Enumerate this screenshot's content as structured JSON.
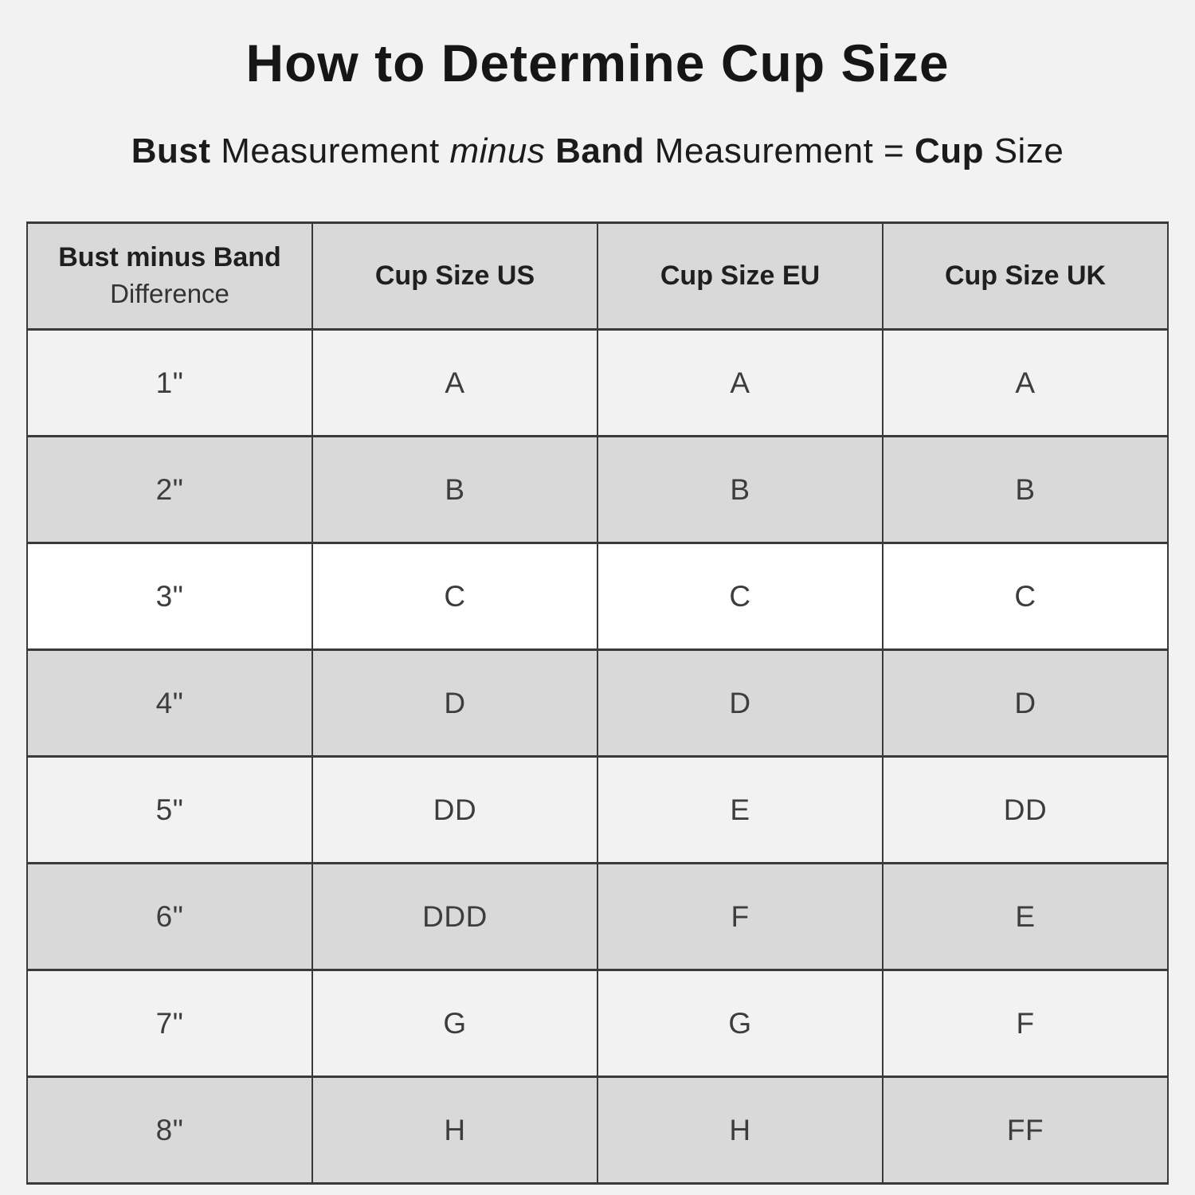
{
  "page": {
    "title": "How to Determine Cup Size",
    "subtitle_segments": [
      {
        "text": "Bust",
        "style": "bold"
      },
      {
        "text": " Measurement ",
        "style": "normal"
      },
      {
        "text": "minus",
        "style": "italic"
      },
      {
        "text": " ",
        "style": "normal"
      },
      {
        "text": "Band",
        "style": "bold"
      },
      {
        "text": " Measurement = ",
        "style": "normal"
      },
      {
        "text": "Cup",
        "style": "bold"
      },
      {
        "text": " Size",
        "style": "normal"
      }
    ],
    "colors": {
      "page_background": "#f2f2f2",
      "row_gray": "#d9d9d9",
      "row_light": "#f2f2f2",
      "row_white": "#ffffff",
      "border": "#3a3a3a",
      "text": "#1b1b1b"
    }
  },
  "table": {
    "headers": {
      "diff_title": "Bust minus Band",
      "diff_subtitle": "Difference",
      "us": "Cup Size US",
      "eu": "Cup Size EU",
      "uk": "Cup Size UK"
    },
    "rows": [
      {
        "diff": "1\"",
        "us": "A",
        "eu": "A",
        "uk": "A",
        "bg": "light"
      },
      {
        "diff": "2\"",
        "us": "B",
        "eu": "B",
        "uk": "B",
        "bg": "gray"
      },
      {
        "diff": "3\"",
        "us": "C",
        "eu": "C",
        "uk": "C",
        "bg": "white"
      },
      {
        "diff": "4\"",
        "us": "D",
        "eu": "D",
        "uk": "D",
        "bg": "gray"
      },
      {
        "diff": "5\"",
        "us": "DD",
        "eu": "E",
        "uk": "DD",
        "bg": "light"
      },
      {
        "diff": "6\"",
        "us": "DDD",
        "eu": "F",
        "uk": "E",
        "bg": "gray"
      },
      {
        "diff": "7\"",
        "us": "G",
        "eu": "G",
        "uk": "F",
        "bg": "light"
      },
      {
        "diff": "8\"",
        "us": "H",
        "eu": "H",
        "uk": "FF",
        "bg": "gray"
      }
    ]
  }
}
